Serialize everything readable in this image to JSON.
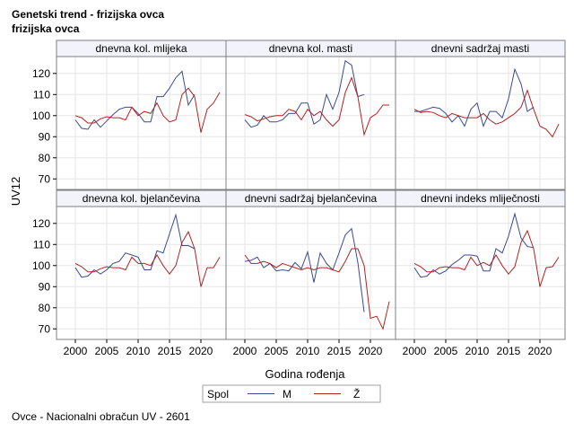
{
  "header": {
    "title": "Genetski trend - frizijska ovca",
    "subtitle": "frizijska ovca"
  },
  "footer": {
    "note": "Ovce - Nacionalni obračun UV - 2601"
  },
  "colors": {
    "M": "#3b4a8f",
    "Z": "#b22222",
    "grid": "#e6e6e6",
    "frame": "#7f7f7f",
    "header_bg": "#f3f3fb"
  },
  "chart_data": {
    "type": "line",
    "ylabel": "UV12",
    "xlabel": "Godina rođenja",
    "xlim": [
      1997,
      2024
    ],
    "ylim": [
      65,
      128
    ],
    "x_ticks": [
      2000,
      2005,
      2010,
      2015,
      2020
    ],
    "y_ticks": [
      70,
      80,
      90,
      100,
      110,
      120
    ],
    "legend": {
      "title": "Spol",
      "entries": [
        "M",
        "Ž"
      ],
      "position": "bottom"
    },
    "panels": [
      {
        "title": "dnevna kol. mlijeka",
        "series": [
          {
            "name": "M",
            "x": [
              2000,
              2001,
              2002,
              2003,
              2004,
              2005,
              2006,
              2007,
              2008,
              2009,
              2010,
              2011,
              2012,
              2013,
              2014,
              2015,
              2016,
              2017,
              2018,
              2019
            ],
            "values": [
              98,
              94,
              93.5,
              98,
              94.5,
              97.5,
              100.5,
              103,
              104,
              104,
              101,
              97,
              97,
              109,
              109,
              113,
              118,
              121,
              105,
              110
            ]
          },
          {
            "name": "Ž",
            "x": [
              2000,
              2001,
              2002,
              2003,
              2004,
              2005,
              2006,
              2007,
              2008,
              2009,
              2010,
              2011,
              2012,
              2013,
              2014,
              2015,
              2016,
              2017,
              2018,
              2019,
              2020,
              2021,
              2022,
              2023
            ],
            "values": [
              100,
              99,
              96.5,
              96.5,
              98.5,
              99.5,
              99,
              99,
              98,
              104,
              100,
              102,
              101,
              106,
              100,
              97,
              98,
              110,
              113,
              109,
              92,
              103,
              106,
              111
            ]
          }
        ]
      },
      {
        "title": "dnevna kol. masti",
        "series": [
          {
            "name": "M",
            "x": [
              2000,
              2001,
              2002,
              2003,
              2004,
              2005,
              2006,
              2007,
              2008,
              2009,
              2010,
              2011,
              2012,
              2013,
              2014,
              2015,
              2016,
              2017,
              2018,
              2019
            ],
            "values": [
              98,
              94.5,
              95.5,
              100,
              97,
              97,
              98,
              101,
              101,
              106,
              106,
              96,
              98,
              110,
              103,
              111,
              126,
              124,
              109,
              110
            ]
          },
          {
            "name": "Ž",
            "x": [
              2000,
              2001,
              2002,
              2003,
              2004,
              2005,
              2006,
              2007,
              2008,
              2009,
              2010,
              2011,
              2012,
              2013,
              2014,
              2015,
              2016,
              2017,
              2018,
              2019,
              2020,
              2021,
              2022,
              2023
            ],
            "values": [
              100.5,
              99.5,
              97.5,
              98.5,
              99.5,
              100,
              100,
              103,
              102,
              98,
              103,
              100,
              102,
              98,
              95,
              98,
              111,
              118,
              109,
              91,
              99,
              101,
              105,
              105
            ]
          }
        ]
      },
      {
        "title": "dnevni sadržaj masti",
        "series": [
          {
            "name": "M",
            "x": [
              2000,
              2001,
              2002,
              2003,
              2004,
              2005,
              2006,
              2007,
              2008,
              2009,
              2010,
              2011,
              2012,
              2013,
              2014,
              2015,
              2016,
              2017,
              2018,
              2019
            ],
            "values": [
              102,
              102,
              103,
              104,
              103.5,
              101,
              97,
              100,
              95,
              103,
              106,
              95,
              102,
              102,
              99,
              108,
              122,
              115,
              102,
              104
            ]
          },
          {
            "name": "Ž",
            "x": [
              2000,
              2001,
              2002,
              2003,
              2004,
              2005,
              2006,
              2007,
              2008,
              2009,
              2010,
              2011,
              2012,
              2013,
              2014,
              2015,
              2016,
              2017,
              2018,
              2019,
              2020,
              2021,
              2022,
              2023
            ],
            "values": [
              103,
              101.5,
              102,
              101.5,
              100,
              99,
              101,
              100,
              99,
              99,
              99,
              101,
              98,
              96,
              97,
              99,
              101,
              104,
              112,
              103,
              95,
              93.5,
              90,
              96
            ]
          }
        ]
      },
      {
        "title": "dnevna kol. bjelančevina",
        "series": [
          {
            "name": "M",
            "x": [
              2000,
              2001,
              2002,
              2003,
              2004,
              2005,
              2006,
              2007,
              2008,
              2009,
              2010,
              2011,
              2012,
              2013,
              2014,
              2015,
              2016,
              2017,
              2018,
              2019
            ],
            "values": [
              99,
              94.5,
              95,
              98,
              96,
              98,
              101,
              102,
              106,
              105,
              104,
              98,
              98,
              107,
              106,
              115,
              124,
              109.5,
              109.5,
              108
            ]
          },
          {
            "name": "Ž",
            "x": [
              2000,
              2001,
              2002,
              2003,
              2004,
              2005,
              2006,
              2007,
              2008,
              2009,
              2010,
              2011,
              2012,
              2013,
              2014,
              2015,
              2016,
              2017,
              2018,
              2019,
              2020,
              2021,
              2022,
              2023
            ],
            "values": [
              101,
              99.5,
              97,
              97,
              98.5,
              99.5,
              99,
              99,
              98,
              104,
              101,
              101,
              100,
              105,
              100,
              96,
              100,
              111,
              116,
              108,
              90,
              99,
              99,
              104
            ]
          }
        ]
      },
      {
        "title": "dnevni sadržaj bjelančevina",
        "series": [
          {
            "name": "M",
            "x": [
              2000,
              2001,
              2002,
              2003,
              2004,
              2005,
              2006,
              2007,
              2008,
              2009,
              2010,
              2011,
              2012,
              2013,
              2014,
              2015,
              2016,
              2017,
              2018,
              2019
            ],
            "values": [
              102,
              102.5,
              104,
              99,
              101,
              97.5,
              98,
              97.5,
              101.5,
              98.5,
              106.5,
              92,
              106,
              101,
              98,
              106,
              114.5,
              117.5,
              101.5,
              78
            ]
          },
          {
            "name": "Ž",
            "x": [
              2000,
              2001,
              2002,
              2003,
              2004,
              2005,
              2006,
              2007,
              2008,
              2009,
              2010,
              2011,
              2012,
              2013,
              2014,
              2015,
              2016,
              2017,
              2018,
              2019,
              2020,
              2021,
              2022,
              2023
            ],
            "values": [
              105,
              101,
              101,
              102,
              101,
              99,
              101,
              100,
              99,
              98,
              99,
              98,
              99,
              99,
              98,
              97,
              102,
              108,
              108,
              100,
              75,
              76,
              70,
              83
            ]
          }
        ]
      },
      {
        "title": "dnevni indeks mliječnosti",
        "series": [
          {
            "name": "M",
            "x": [
              2000,
              2001,
              2002,
              2003,
              2004,
              2005,
              2006,
              2007,
              2008,
              2009,
              2010,
              2011,
              2012,
              2013,
              2014,
              2015,
              2016,
              2017,
              2018,
              2019
            ],
            "values": [
              99,
              94.5,
              95,
              98,
              96,
              97.5,
              100.5,
              102.5,
              105,
              105,
              104.5,
              97.5,
              97.5,
              108,
              106,
              114,
              124.5,
              113,
              109,
              108.5
            ]
          },
          {
            "name": "Ž",
            "x": [
              2000,
              2001,
              2002,
              2003,
              2004,
              2005,
              2006,
              2007,
              2008,
              2009,
              2010,
              2011,
              2012,
              2013,
              2014,
              2015,
              2016,
              2017,
              2018,
              2019,
              2020,
              2021,
              2022,
              2023
            ],
            "values": [
              101,
              99.5,
              97,
              97,
              99,
              99.5,
              99,
              99,
              98,
              104,
              100,
              101.5,
              100,
              105,
              100,
              96,
              99.5,
              111,
              116.5,
              108,
              90,
              99,
              99.5,
              104
            ]
          }
        ]
      }
    ]
  }
}
